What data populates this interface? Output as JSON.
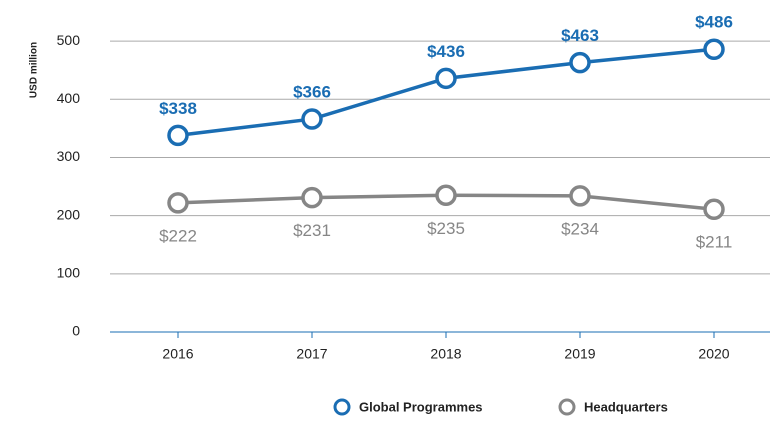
{
  "chart_data": {
    "type": "line",
    "y_axis_label": "USD million",
    "categories": [
      "2016",
      "2017",
      "2018",
      "2019",
      "2020"
    ],
    "series": [
      {
        "name": "Global Programmes",
        "color": "#1a6db3",
        "values": [
          338,
          366,
          436,
          463,
          486
        ],
        "value_labels": [
          "$338",
          "$366",
          "$436",
          "$463",
          "$486"
        ]
      },
      {
        "name": "Headquarters",
        "color": "#868686",
        "values": [
          222,
          231,
          235,
          234,
          211
        ],
        "value_labels": [
          "$222",
          "$231",
          "$235",
          "$234",
          "$211"
        ]
      }
    ],
    "ylim": [
      0,
      550
    ],
    "yticks": [
      0,
      100,
      200,
      300,
      400,
      500
    ],
    "grid": true,
    "legend": "bottom"
  }
}
